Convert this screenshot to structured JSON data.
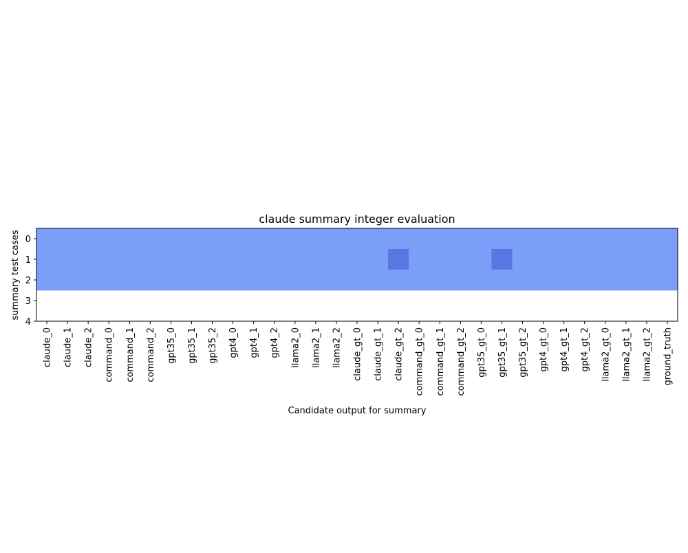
{
  "chart_data": {
    "type": "heatmap",
    "title": "claude summary integer evaluation",
    "xlabel": "Candidate output for summary",
    "ylabel": "summary test cases",
    "x_categories": [
      "claude_0",
      "claude_1",
      "claude_2",
      "command_0",
      "command_1",
      "command_2",
      "gpt35_0",
      "gpt35_1",
      "gpt35_2",
      "gpt4_0",
      "gpt4_1",
      "gpt4_2",
      "llama2_0",
      "llama2_1",
      "llama2_2",
      "claude_gt_0",
      "claude_gt_1",
      "claude_gt_2",
      "command_gt_0",
      "command_gt_1",
      "command_gt_2",
      "gpt35_gt_0",
      "gpt35_gt_1",
      "gpt35_gt_2",
      "gpt4_gt_0",
      "gpt4_gt_1",
      "gpt4_gt_2",
      "llama2_gt_0",
      "llama2_gt_1",
      "llama2_gt_2",
      "ground_truth"
    ],
    "y_ticks": [
      "0",
      "1",
      "2",
      "3",
      "4"
    ],
    "ylim": [
      4,
      -0.5
    ],
    "rows": [
      [
        1,
        1,
        1,
        1,
        1,
        1,
        1,
        1,
        1,
        1,
        1,
        1,
        1,
        1,
        1,
        1,
        1,
        1,
        1,
        1,
        1,
        1,
        1,
        1,
        1,
        1,
        1,
        1,
        1,
        1,
        1
      ],
      [
        1,
        1,
        1,
        1,
        1,
        1,
        1,
        1,
        1,
        1,
        1,
        1,
        1,
        1,
        1,
        1,
        1,
        0,
        1,
        1,
        1,
        1,
        0,
        1,
        1,
        1,
        1,
        1,
        1,
        1,
        1
      ],
      [
        1,
        1,
        1,
        1,
        1,
        1,
        1,
        1,
        1,
        1,
        1,
        1,
        1,
        1,
        1,
        1,
        1,
        1,
        1,
        1,
        1,
        1,
        1,
        1,
        1,
        1,
        1,
        1,
        1,
        1,
        1
      ]
    ],
    "colors": {
      "1": "#7b9ff9",
      "0": "#5977e3"
    },
    "grid": false
  }
}
